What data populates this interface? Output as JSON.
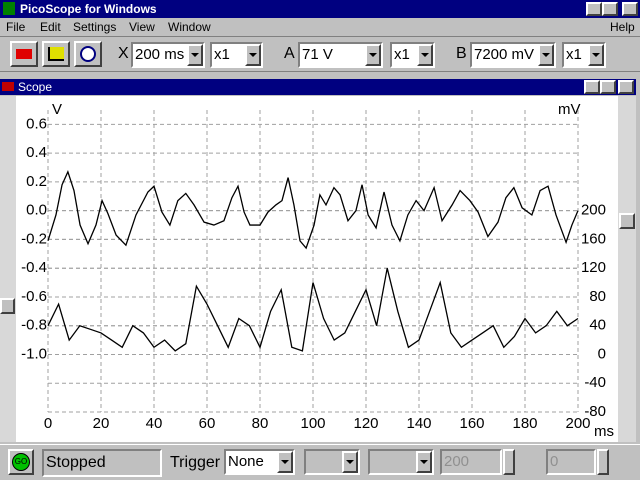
{
  "window": {
    "title": "PicoScope for Windows",
    "menu": [
      "File",
      "Edit",
      "Settings",
      "View",
      "Window"
    ],
    "help": "Help"
  },
  "toolbar": {
    "x_label": "X",
    "timebase": "200 ms",
    "x_mult": "x1",
    "a_label": "A",
    "a_range": "71 V",
    "a_mult": "x1",
    "b_label": "B",
    "b_range": "7200 mV",
    "b_mult": "x1"
  },
  "scope": {
    "title": "Scope"
  },
  "chart_data": {
    "type": "line",
    "y_label": "V",
    "y2_label": "mV",
    "x_label": "ms",
    "xlim": [
      0,
      200
    ],
    "xticks": [
      0,
      20,
      40,
      60,
      80,
      100,
      120,
      140,
      160,
      180,
      200
    ],
    "ylim": [
      -1.4,
      0.7
    ],
    "yticks": [
      0.6,
      0.4,
      0.2,
      {
        "value": 0,
        "label": "0.0"
      },
      -0.2,
      -0.4,
      -0.6,
      -0.8,
      {
        "value": -1,
        "label": "-1.0"
      }
    ],
    "y2lim": [
      -80,
      340
    ],
    "y2ticks": [
      200,
      160,
      120,
      80,
      40,
      0,
      -40,
      -80
    ],
    "grid": true,
    "series": [
      {
        "color": "#000000",
        "x": [
          0,
          3,
          5.3,
          7.5,
          9.8,
          12.1,
          15.1,
          18.1,
          20.4,
          22.6,
          25.7,
          29.4,
          33.2,
          37.7,
          40,
          43,
          46,
          49,
          52,
          55.1,
          58.9,
          62.6,
          66.4,
          69.4,
          71.7,
          74,
          76.2,
          80,
          83,
          86,
          88.3,
          90.6,
          92.8,
          95.1,
          97.4,
          100.4,
          102.6,
          104.9,
          107.9,
          110.2,
          113.2,
          116.2,
          118.5,
          120.8,
          123.8,
          126.8,
          129.8,
          132.8,
          135.8,
          138.9,
          141.9,
          145.7,
          148.7,
          152.5,
          155.5,
          159.2,
          162.3,
          166,
          169.8,
          172.8,
          175.8,
          178.9,
          182.6,
          185.7,
          188.7,
          191.7,
          195.5,
          197.7,
          200
        ],
        "values": [
          -0.21,
          -0.03,
          0.18,
          0.27,
          0.14,
          -0.1,
          -0.23,
          -0.1,
          0.07,
          -0.02,
          -0.17,
          -0.24,
          -0.03,
          0.13,
          0.17,
          -0.01,
          -0.1,
          0.07,
          0.12,
          0.04,
          -0.08,
          -0.1,
          -0.07,
          0.09,
          0.17,
          -0.01,
          -0.1,
          -0.1,
          -0.01,
          0.04,
          0.07,
          0.23,
          0.04,
          -0.21,
          -0.26,
          -0.1,
          0.11,
          0.04,
          0.16,
          0.11,
          -0.07,
          0,
          0.18,
          -0.03,
          -0.12,
          0.13,
          -0.1,
          -0.21,
          -0.03,
          0.07,
          0,
          0.16,
          -0.07,
          0.04,
          0.14,
          0.07,
          -0.01,
          -0.18,
          -0.08,
          0.09,
          0.16,
          0.02,
          -0.03,
          0.14,
          0.17,
          -0.03,
          -0.22,
          -0.1,
          0
        ]
      },
      {
        "color": "#000000",
        "axis": "y2",
        "x": [
          0,
          4,
          8,
          12,
          16,
          20,
          24,
          28,
          32,
          36,
          40,
          44,
          48,
          52,
          56,
          60,
          64,
          68,
          72,
          76,
          80,
          84,
          88,
          92,
          96,
          100,
          104,
          108,
          112,
          116,
          120,
          124,
          128,
          132,
          136,
          140,
          144,
          148,
          152,
          156,
          160,
          164,
          168,
          172,
          176,
          180,
          184,
          188,
          192,
          196,
          200
        ],
        "values": [
          40,
          70,
          20,
          40,
          35,
          30,
          20,
          10,
          40,
          30,
          10,
          20,
          5,
          15,
          95,
          70,
          40,
          10,
          50,
          40,
          10,
          60,
          90,
          10,
          5,
          100,
          50,
          20,
          30,
          60,
          90,
          40,
          120,
          60,
          10,
          20,
          60,
          100,
          30,
          10,
          20,
          30,
          40,
          10,
          25,
          50,
          30,
          40,
          60,
          40,
          50
        ]
      }
    ]
  },
  "status": {
    "go": "GO",
    "state": "Stopped",
    "trigger_label": "Trigger",
    "trigger_mode": "None",
    "count": "200",
    "delay": "0"
  }
}
